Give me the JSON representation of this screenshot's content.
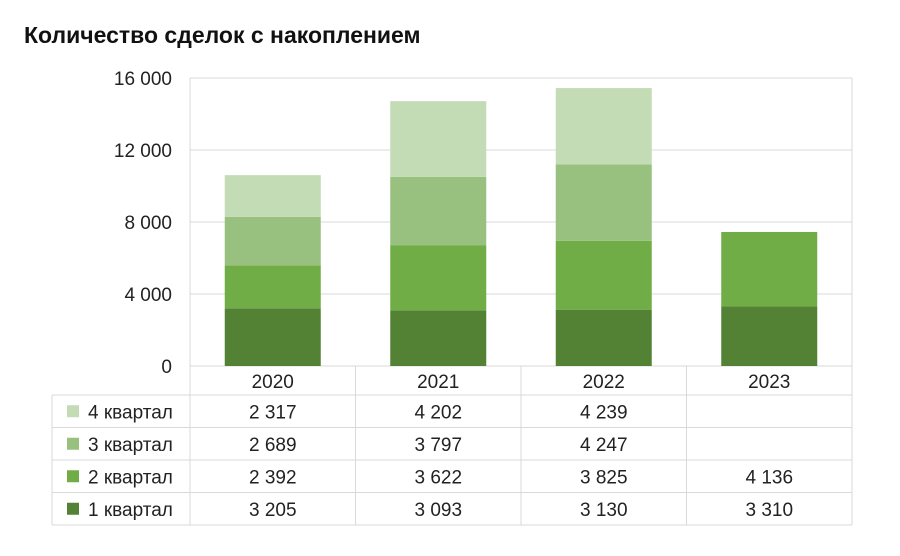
{
  "chart_data": {
    "type": "bar",
    "stacked": true,
    "title": "Количество сделок с накоплением",
    "categories": [
      "2020",
      "2021",
      "2022",
      "2023"
    ],
    "series": [
      {
        "name": "1 квартал",
        "color": "#548235",
        "values": [
          3205,
          3093,
          3130,
          3310
        ],
        "labels": [
          "3 205",
          "3 093",
          "3 130",
          "3 310"
        ]
      },
      {
        "name": "2 квартал",
        "color": "#70AD47",
        "values": [
          2392,
          3622,
          3825,
          4136
        ],
        "labels": [
          "2 392",
          "3 622",
          "3 825",
          "4 136"
        ]
      },
      {
        "name": "3 квартал",
        "color": "#98C07E",
        "values": [
          2689,
          3797,
          4247,
          null
        ],
        "labels": [
          "2 689",
          "3 797",
          "4 247",
          ""
        ]
      },
      {
        "name": "4 квартал",
        "color": "#C4DCB6",
        "values": [
          2317,
          4202,
          4239,
          null
        ],
        "labels": [
          "2 317",
          "4 202",
          "4 239",
          ""
        ]
      }
    ],
    "ylim": [
      0,
      16000
    ],
    "yticks": [
      0,
      4000,
      8000,
      12000,
      16000
    ],
    "ytick_labels": [
      "0",
      "4 000",
      "8 000",
      "12 000",
      "16 000"
    ],
    "grid": true,
    "legend": "data-table-below"
  }
}
